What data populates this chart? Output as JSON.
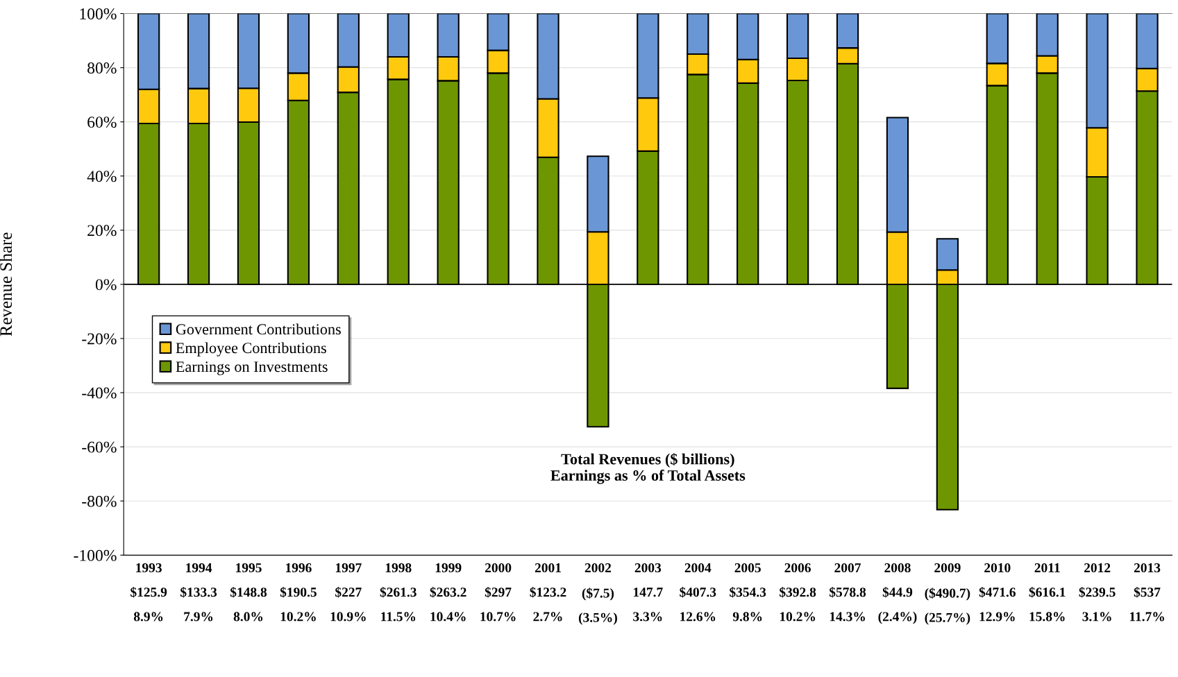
{
  "chart_data": {
    "type": "bar",
    "stacked": true,
    "ylabel": "Revenue Share",
    "categories": [
      "1993\n$125.9\n8.9%",
      "1994\n$133.3\n7.9%",
      "1995\n$148.8\n8.0%",
      "1996\n$190.5\n10.2%",
      "1997\n$227\n10.9%",
      "1998\n$261.3\n11.5%",
      "1999\n$263.2\n10.4%",
      "2000\n$297\n10.7%",
      "2001\n$123.2\n2.7%",
      "2002\n($7.5)\n(3.5%)",
      "2003\n147.7\n3.3%",
      "2004\n$407.3\n12.6%",
      "2005\n$354.3\n9.8%",
      "2006\n$392.8\n10.2%",
      "2007\n$578.8\n14.3%",
      "2008\n$44.9\n(2.4%)",
      "2009\n($490.7)\n(25.7%)",
      "2010\n$471.6\n12.9%",
      "2011\n$616.1\n15.8%",
      "2012\n$239.5\n3.1%",
      "2013\n$537\n11.7%"
    ],
    "series": [
      {
        "name": "Earnings on Investments",
        "color": "#6e9600",
        "values": [
          59.4,
          59.4,
          59.9,
          67.9,
          70.9,
          75.7,
          75.2,
          78.0,
          46.9,
          -52.6,
          49.2,
          77.5,
          74.3,
          75.3,
          81.5,
          -38.4,
          -83.2,
          73.4,
          78.0,
          39.7,
          71.4
        ]
      },
      {
        "name": "Employee Contributions",
        "color": "#ffc90e",
        "values": [
          12.6,
          12.9,
          12.5,
          10.1,
          9.4,
          8.3,
          8.8,
          8.4,
          21.6,
          19.4,
          19.6,
          7.5,
          8.7,
          8.2,
          5.8,
          19.3,
          5.3,
          8.2,
          6.4,
          18.1,
          8.3
        ]
      },
      {
        "name": "Government Contributions",
        "color": "#6a96d6",
        "values": [
          28.0,
          27.7,
          27.6,
          22.0,
          19.7,
          16.0,
          16.0,
          13.6,
          31.5,
          27.9,
          31.2,
          15.0,
          17.0,
          16.5,
          12.7,
          42.3,
          11.5,
          18.4,
          15.6,
          42.2,
          20.3
        ]
      }
    ],
    "ylim": [
      -100,
      100
    ],
    "yticks": [
      {
        "value": -100,
        "label": "-100%"
      },
      {
        "value": -80,
        "label": "-80%"
      },
      {
        "value": -60,
        "label": "-60%"
      },
      {
        "value": -40,
        "label": "-40%"
      },
      {
        "value": -20,
        "label": "-20%"
      },
      {
        "value": 0,
        "label": "0%"
      },
      {
        "value": 20,
        "label": "20%"
      },
      {
        "value": 40,
        "label": "40%"
      },
      {
        "value": 60,
        "label": "60%"
      },
      {
        "value": 80,
        "label": "80%"
      },
      {
        "value": 100,
        "label": "100%"
      }
    ],
    "grid": "y",
    "legend": "left",
    "annotations": [
      "Total Revenues ($ billions)\nEarnings as % of Total Assets"
    ]
  }
}
